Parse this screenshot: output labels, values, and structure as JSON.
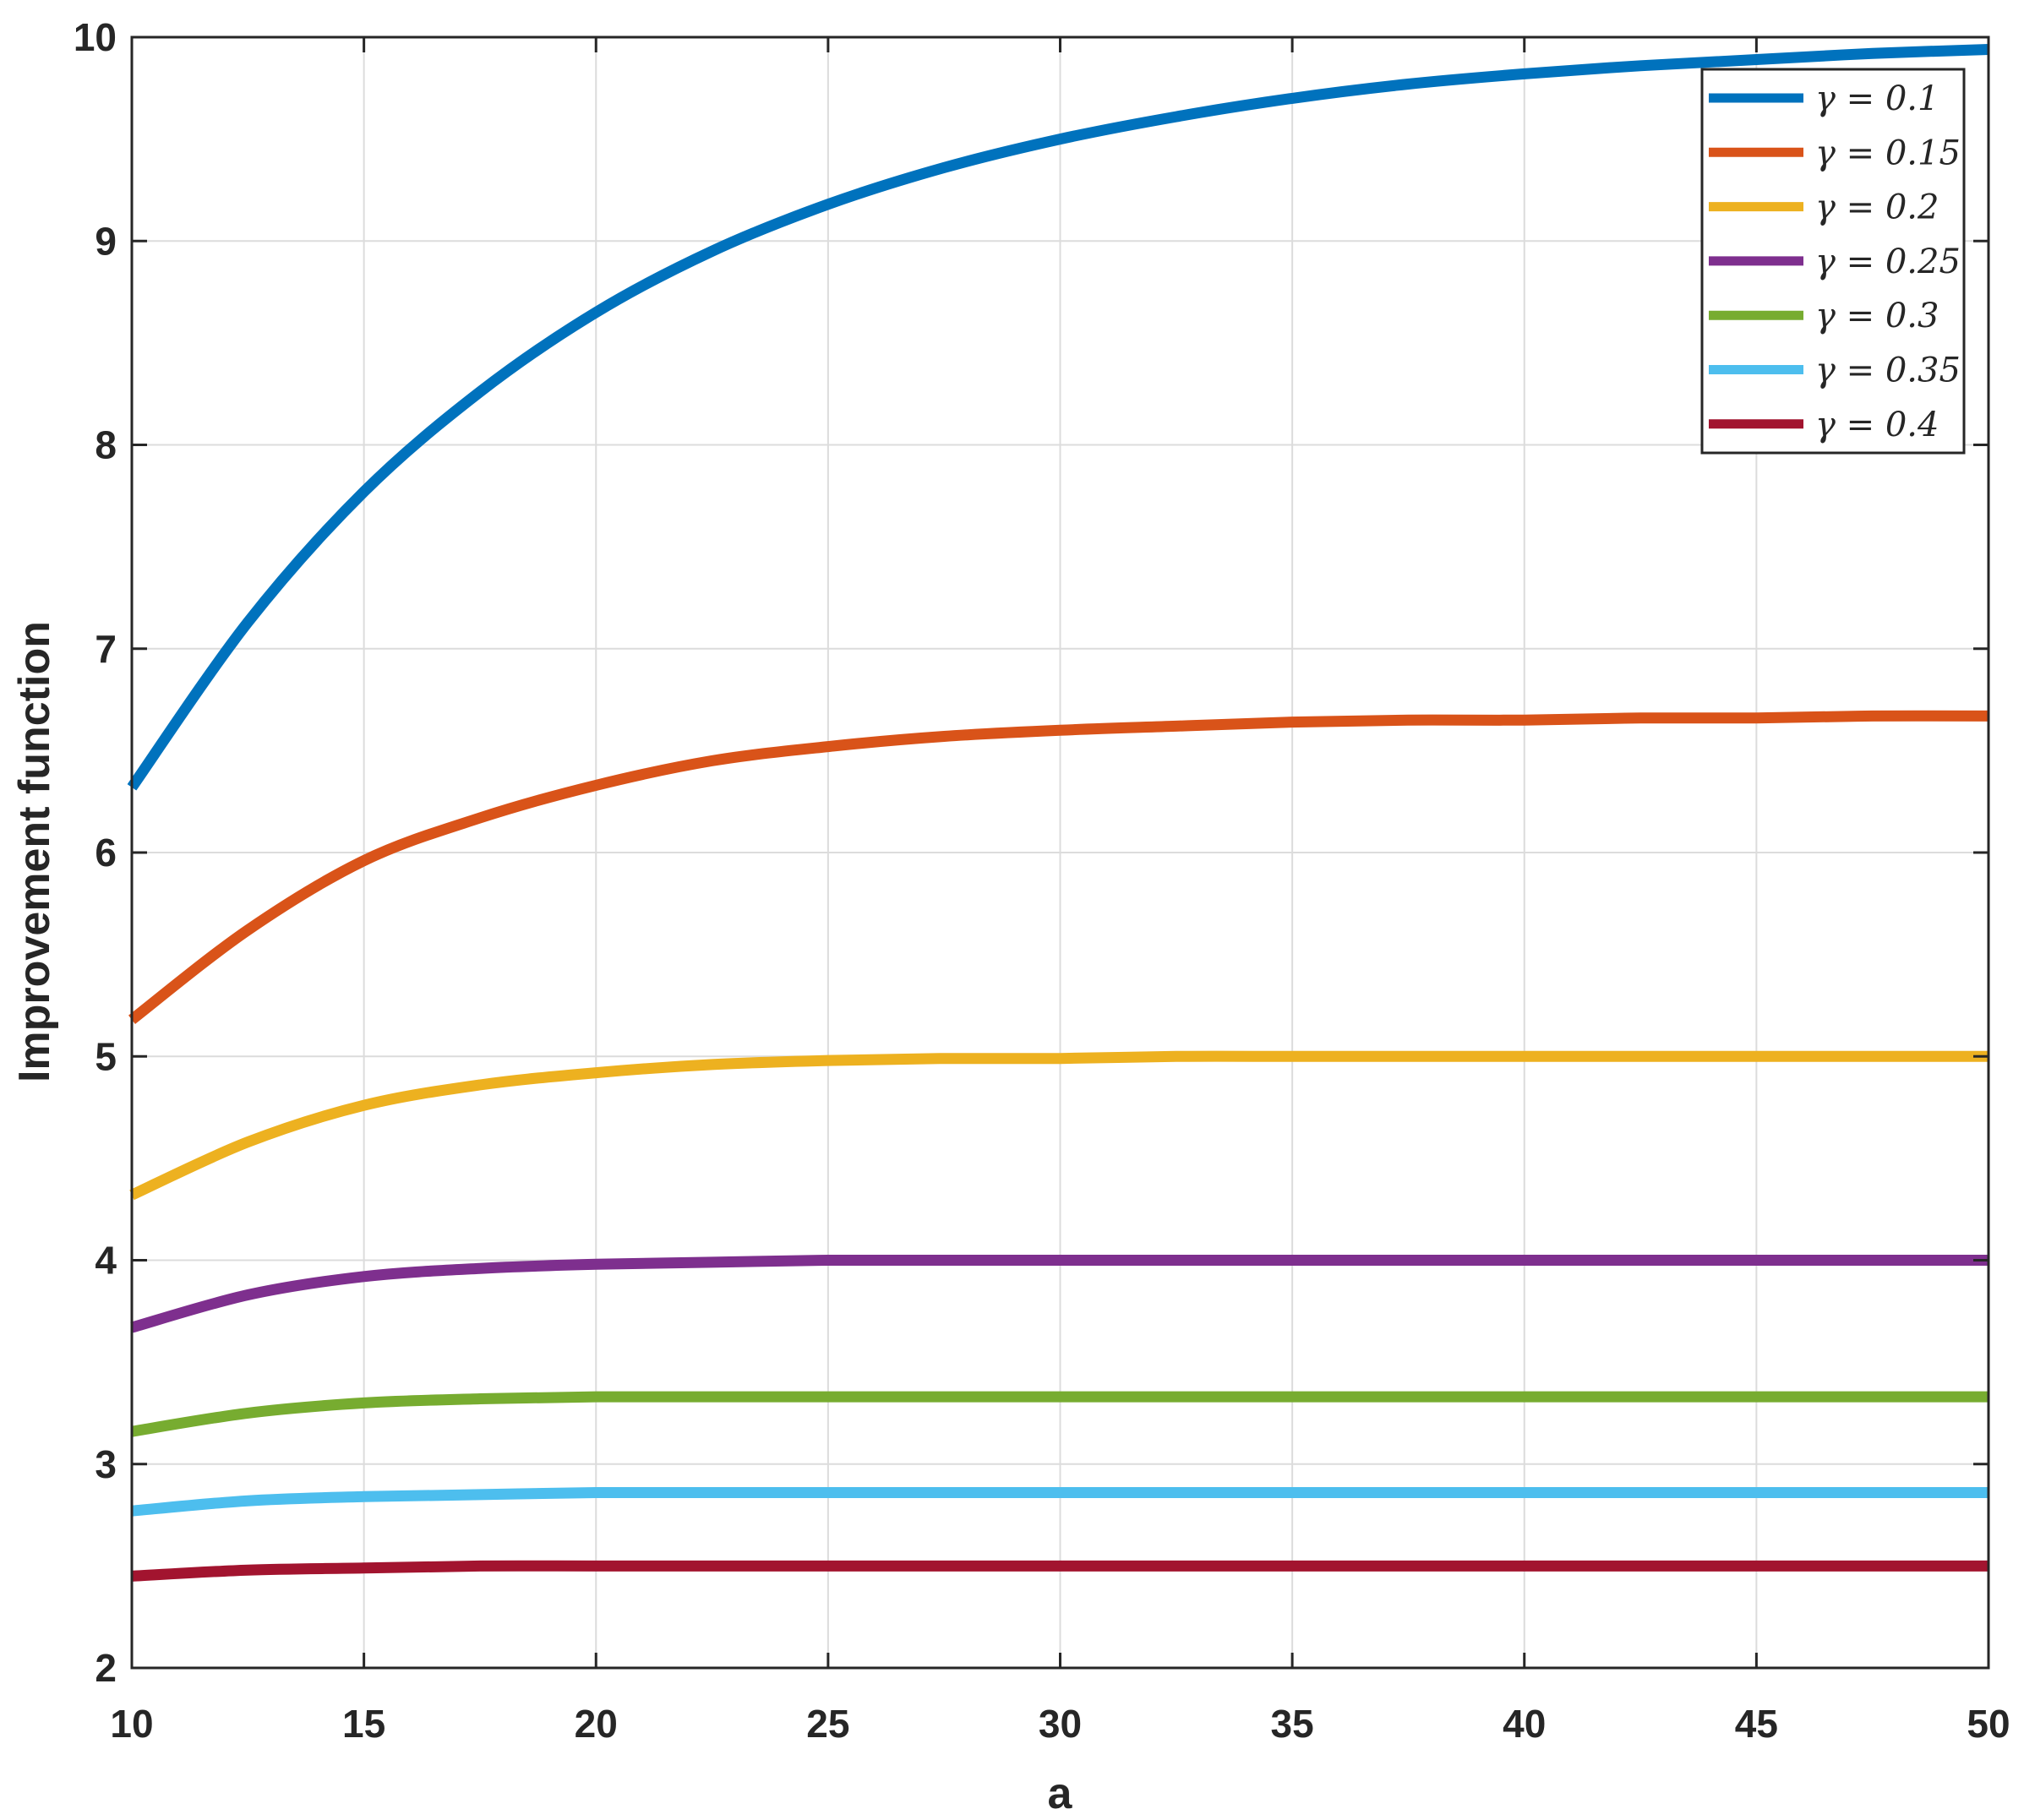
{
  "chart_data": {
    "type": "line",
    "xlabel": "a",
    "ylabel": "Improvement function",
    "xlim": [
      10,
      50
    ],
    "ylim": [
      2,
      10
    ],
    "xticks": [
      "10",
      "15",
      "20",
      "25",
      "30",
      "35",
      "40",
      "45",
      "50"
    ],
    "yticks": [
      "2",
      "3",
      "4",
      "5",
      "6",
      "7",
      "8",
      "9",
      "10"
    ],
    "grid": true,
    "legend_position": "top-right",
    "x": [
      10,
      12.5,
      15,
      17.5,
      20,
      22.5,
      25,
      27.5,
      30,
      32.5,
      35,
      37.5,
      40,
      42.5,
      45,
      47.5,
      50
    ],
    "series": [
      {
        "name": "γ = 0.1",
        "color": "#0072BD",
        "values": [
          6.32,
          7.13,
          7.77,
          8.26,
          8.65,
          8.95,
          9.18,
          9.36,
          9.5,
          9.61,
          9.7,
          9.77,
          9.82,
          9.86,
          9.89,
          9.92,
          9.94
        ]
      },
      {
        "name": "γ = 0.15",
        "color": "#D95319",
        "values": [
          5.18,
          5.62,
          5.96,
          6.17,
          6.33,
          6.45,
          6.52,
          6.57,
          6.6,
          6.62,
          6.64,
          6.65,
          6.65,
          6.66,
          6.66,
          6.67,
          6.67
        ]
      },
      {
        "name": "γ = 0.2",
        "color": "#EDB120",
        "values": [
          4.32,
          4.58,
          4.76,
          4.86,
          4.92,
          4.96,
          4.98,
          4.99,
          4.99,
          5.0,
          5.0,
          5.0,
          5.0,
          5.0,
          5.0,
          5.0,
          5.0
        ]
      },
      {
        "name": "γ = 0.25",
        "color": "#7E2F8E",
        "values": [
          3.67,
          3.83,
          3.92,
          3.96,
          3.98,
          3.99,
          4.0,
          4.0,
          4.0,
          4.0,
          4.0,
          4.0,
          4.0,
          4.0,
          4.0,
          4.0,
          4.0
        ]
      },
      {
        "name": "γ = 0.3",
        "color": "#77AC30",
        "values": [
          3.16,
          3.25,
          3.3,
          3.32,
          3.33,
          3.33,
          3.33,
          3.33,
          3.33,
          3.33,
          3.33,
          3.33,
          3.33,
          3.33,
          3.33,
          3.33,
          3.33
        ]
      },
      {
        "name": "γ = 0.35",
        "color": "#4DBEEE",
        "values": [
          2.77,
          2.82,
          2.84,
          2.85,
          2.86,
          2.86,
          2.86,
          2.86,
          2.86,
          2.86,
          2.86,
          2.86,
          2.86,
          2.86,
          2.86,
          2.86,
          2.86
        ]
      },
      {
        "name": "γ = 0.4",
        "color": "#A2142F",
        "values": [
          2.45,
          2.48,
          2.49,
          2.5,
          2.5,
          2.5,
          2.5,
          2.5,
          2.5,
          2.5,
          2.5,
          2.5,
          2.5,
          2.5,
          2.5,
          2.5,
          2.5
        ]
      }
    ]
  }
}
